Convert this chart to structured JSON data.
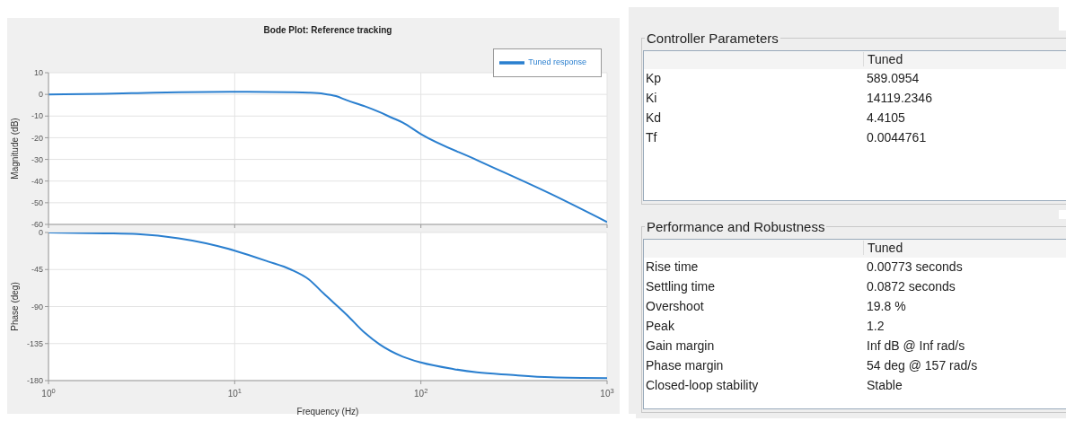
{
  "chart_data": [
    {
      "type": "line",
      "title": "Bode Plot: Reference tracking",
      "ylabel": "Magnitude (dB)",
      "log": "x",
      "grid": true,
      "legend": "top right",
      "tick_labels": "y",
      "x": [
        1,
        2,
        3,
        5,
        10,
        20,
        25,
        30,
        35,
        40,
        50,
        60,
        70,
        80,
        100,
        200,
        500,
        1000
      ],
      "series": [
        {
          "name": "Tuned response",
          "color": "#2a7fcf",
          "values": [
            0,
            0.3,
            0.6,
            1.0,
            1.2,
            1.0,
            0.8,
            0.3,
            -0.8,
            -2.7,
            -5.5,
            -8.2,
            -10.8,
            -13,
            -18.3,
            -30.3,
            -46,
            -58.9
          ]
        }
      ],
      "xlim": [
        1,
        1000
      ],
      "xticks": [
        1,
        10,
        100,
        1000
      ],
      "ylim": [
        -60,
        10
      ],
      "yticks": [
        -60,
        -50,
        -40,
        -30,
        -20,
        -10,
        0,
        10
      ]
    },
    {
      "type": "line",
      "xlabel": "Frequency  (Hz)",
      "ylabel": "Phase (deg)",
      "log": "x",
      "grid": true,
      "x": [
        1,
        2,
        3,
        5,
        7,
        10,
        15,
        20,
        25,
        30,
        40,
        50,
        60,
        80,
        100,
        150,
        200,
        300,
        500,
        1000
      ],
      "series": [
        {
          "color": "#2a7fcf",
          "values": [
            0,
            -1,
            -2,
            -7,
            -13,
            -22,
            -35,
            -45,
            -57,
            -74,
            -100,
            -122,
            -136,
            -151,
            -158,
            -166,
            -170,
            -173,
            -176,
            -177
          ]
        }
      ],
      "xlim": [
        1,
        1000
      ],
      "xticks": [
        {
          "value": 1,
          "label": "10$^{0}$"
        },
        {
          "value": 10,
          "label": "10$^{1}$"
        },
        {
          "value": 100,
          "label": "10$^{2}$"
        },
        {
          "value": 1000,
          "label": "10$^{3}$"
        }
      ],
      "ylim": [
        -180,
        0
      ],
      "yticks": [
        -180,
        -135,
        -90,
        -45,
        0
      ]
    },
    {
      "type": "other",
      "title": "Controller Parameters",
      "annotations": [
        "Tuned",
        "Kp",
        "589.0954",
        "Ki",
        "14119.2346",
        "Kd",
        "4.4105",
        "Tf",
        "0.0044761"
      ]
    },
    {
      "type": "other",
      "title": "Performance and Robustness",
      "annotations": [
        "Tuned",
        "Rise time",
        "0.00773 seconds",
        "Settling time",
        "0.0872 seconds",
        "Overshoot",
        "19.8 %",
        "Peak",
        "1.2",
        "Gain margin",
        "Inf dB @ Inf rad/s",
        "Phase margin",
        "54 deg @ 157 rad/s",
        "Closed-loop stability",
        "Stable"
      ]
    }
  ]
}
